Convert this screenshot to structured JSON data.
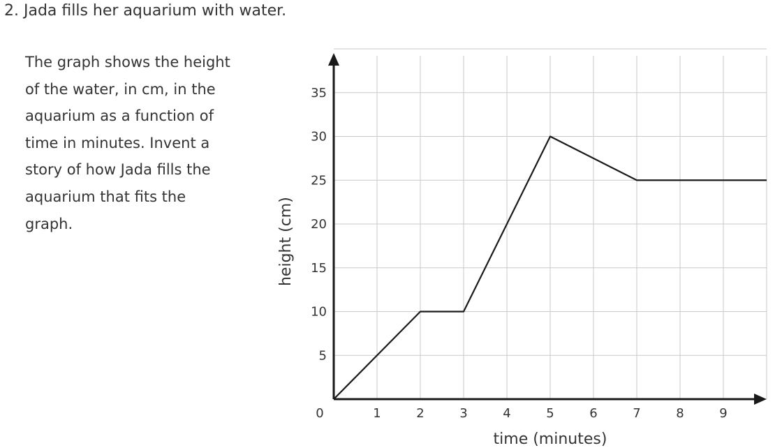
{
  "question": {
    "title": "2. Jada fills her aquarium with water.",
    "prompt_lines": [
      "The graph shows the height",
      "of the water, in cm, in the",
      "aquarium as a function of",
      "time in minutes. Invent a",
      "story of how Jada fills the",
      "aquarium that fits the",
      "graph."
    ]
  },
  "chart_data": {
    "type": "line",
    "xlabel": "time (minutes)",
    "ylabel": "height (cm)",
    "xlim": [
      0,
      10
    ],
    "ylim": [
      0,
      40
    ],
    "x_ticks": [
      1,
      2,
      3,
      4,
      5,
      6,
      7,
      8,
      9
    ],
    "y_ticks": [
      5,
      10,
      15,
      20,
      25,
      30,
      35
    ],
    "origin_label": "0",
    "grid": true,
    "series": [
      {
        "x": [
          0,
          2,
          3,
          5,
          7,
          10
        ],
        "y": [
          0,
          10,
          10,
          30,
          25,
          25
        ]
      }
    ]
  }
}
